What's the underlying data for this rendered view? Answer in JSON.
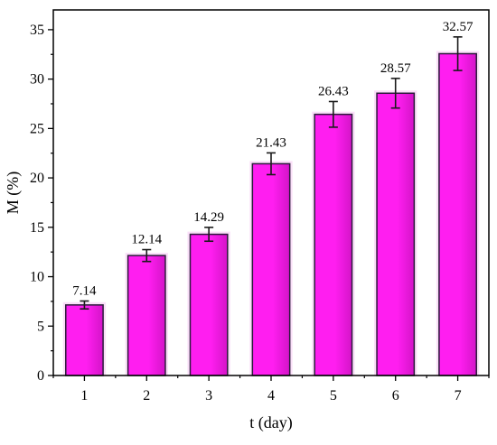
{
  "chart_data": {
    "type": "bar",
    "categories": [
      "1",
      "2",
      "3",
      "4",
      "5",
      "6",
      "7"
    ],
    "values": [
      7.14,
      12.14,
      14.29,
      21.43,
      26.43,
      28.57,
      32.57
    ],
    "errors": [
      0.4,
      0.6,
      0.7,
      1.1,
      1.3,
      1.5,
      1.7
    ],
    "data_labels": [
      "7.14",
      "12.14",
      "14.29",
      "21.43",
      "26.43",
      "28.57",
      "32.57"
    ],
    "xlabel": "t (day)",
    "ylabel": "M (%)",
    "ylim": [
      0,
      37
    ],
    "yticks": [
      0,
      5,
      10,
      15,
      20,
      25,
      30,
      35
    ],
    "ytick_labels": [
      "0",
      "5",
      "10",
      "15",
      "20",
      "25",
      "30",
      "35"
    ],
    "grid": false,
    "bar_color": "#ff1ef0",
    "bar_edge_color": "#2a1a3a"
  }
}
